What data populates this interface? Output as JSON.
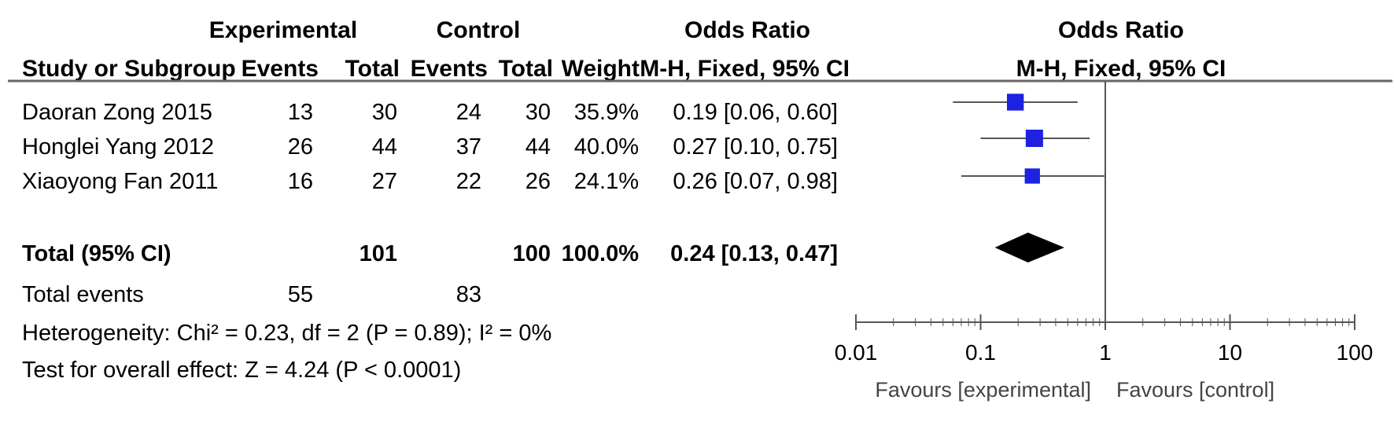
{
  "table": {
    "group_headers": {
      "experimental": "Experimental",
      "control": "Control",
      "odds_ratio_left": "Odds Ratio",
      "odds_ratio_right": "Odds Ratio"
    },
    "columns": {
      "study": "Study or Subgroup",
      "exp_events": "Events",
      "exp_total": "Total",
      "ctl_events": "Events",
      "ctl_total": "Total",
      "weight": "Weight",
      "or_ci": "M-H, Fixed, 95% CI",
      "plot_method": "M-H, Fixed, 95% CI"
    },
    "rows": [
      {
        "study": "Daoran Zong 2015",
        "exp_events": "13",
        "exp_total": "30",
        "ctl_events": "24",
        "ctl_total": "30",
        "weight": "35.9%",
        "or_ci": "0.19 [0.06, 0.60]"
      },
      {
        "study": "Honglei Yang 2012",
        "exp_events": "26",
        "exp_total": "44",
        "ctl_events": "37",
        "ctl_total": "44",
        "weight": "40.0%",
        "or_ci": "0.27 [0.10, 0.75]"
      },
      {
        "study": "Xiaoyong Fan 2011",
        "exp_events": "16",
        "exp_total": "27",
        "ctl_events": "22",
        "ctl_total": "26",
        "weight": "24.1%",
        "or_ci": "0.26 [0.07, 0.98]"
      }
    ],
    "total": {
      "label": "Total (95% CI)",
      "exp_total": "101",
      "ctl_total": "100",
      "weight": "100.0%",
      "or_ci": "0.24 [0.13, 0.47]"
    },
    "total_events": {
      "label": "Total events",
      "exp": "55",
      "ctl": "83"
    },
    "heterogeneity": "Heterogeneity: Chi² = 0.23, df = 2 (P = 0.89); I² = 0%",
    "overall_effect": "Test for overall effect: Z = 4.24 (P < 0.0001)"
  },
  "colors": {
    "square": "#1c22e0",
    "diamond": "#000000",
    "line": "#555555",
    "rule": "#666666"
  },
  "chart_data": {
    "type": "forest",
    "scale": "log",
    "xlim": [
      0.01,
      100
    ],
    "xticks": [
      {
        "value": 0.01,
        "label": "0.01"
      },
      {
        "value": 0.1,
        "label": "0.1"
      },
      {
        "value": 1,
        "label": "1"
      },
      {
        "value": 10,
        "label": "10"
      },
      {
        "value": 100,
        "label": "100"
      }
    ],
    "x_left_label": "Favours [experimental]",
    "x_right_label": "Favours [control]",
    "studies": [
      {
        "name": "Daoran Zong 2015",
        "or": 0.19,
        "lo": 0.06,
        "hi": 0.6,
        "weight": 35.9
      },
      {
        "name": "Honglei Yang 2012",
        "or": 0.27,
        "lo": 0.1,
        "hi": 0.75,
        "weight": 40.0
      },
      {
        "name": "Xiaoyong Fan 2011",
        "or": 0.26,
        "lo": 0.07,
        "hi": 0.98,
        "weight": 24.1
      }
    ],
    "pooled": {
      "or": 0.24,
      "lo": 0.13,
      "hi": 0.47
    }
  }
}
